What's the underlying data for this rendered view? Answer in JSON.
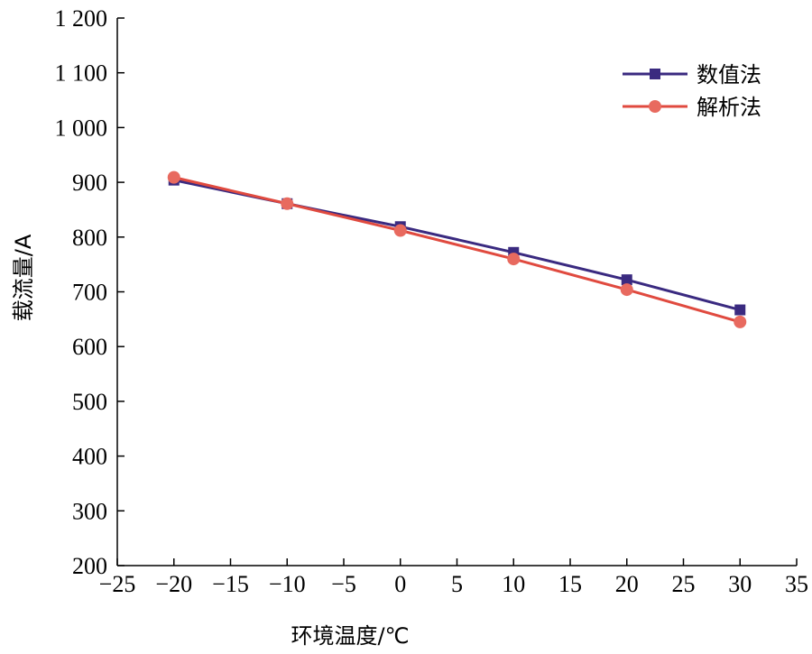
{
  "chart_data": {
    "type": "line",
    "title": "",
    "xlabel": "环境温度/℃",
    "ylabel": "载流量/A",
    "xlim": [
      -25,
      35
    ],
    "ylim": [
      200,
      1200
    ],
    "xticks": [
      -25,
      -20,
      -15,
      -10,
      -5,
      0,
      5,
      10,
      15,
      20,
      25,
      30,
      35
    ],
    "xtick_labels": [
      "−25",
      "−20",
      "−15",
      "−10",
      "−5",
      "0",
      "5",
      "10",
      "15",
      "20",
      "25",
      "30",
      "35"
    ],
    "yticks": [
      200,
      300,
      400,
      500,
      600,
      700,
      800,
      900,
      1000,
      1100,
      1200
    ],
    "ytick_labels": [
      "200",
      "300",
      "400",
      "500",
      "600",
      "700",
      "800",
      "900",
      "1 000",
      "1 100",
      "1 200"
    ],
    "grid": false,
    "legend_position": "top-right",
    "x": [
      -20,
      -10,
      0,
      10,
      20,
      30
    ],
    "series": [
      {
        "name": "数值法",
        "values": [
          904,
          861,
          819,
          772,
          722,
          667
        ],
        "color": "#3a2a80",
        "marker": "square"
      },
      {
        "name": "解析法",
        "values": [
          909,
          861,
          812,
          760,
          704,
          645
        ],
        "color": "#e04a3f",
        "marker": "circle"
      }
    ]
  }
}
